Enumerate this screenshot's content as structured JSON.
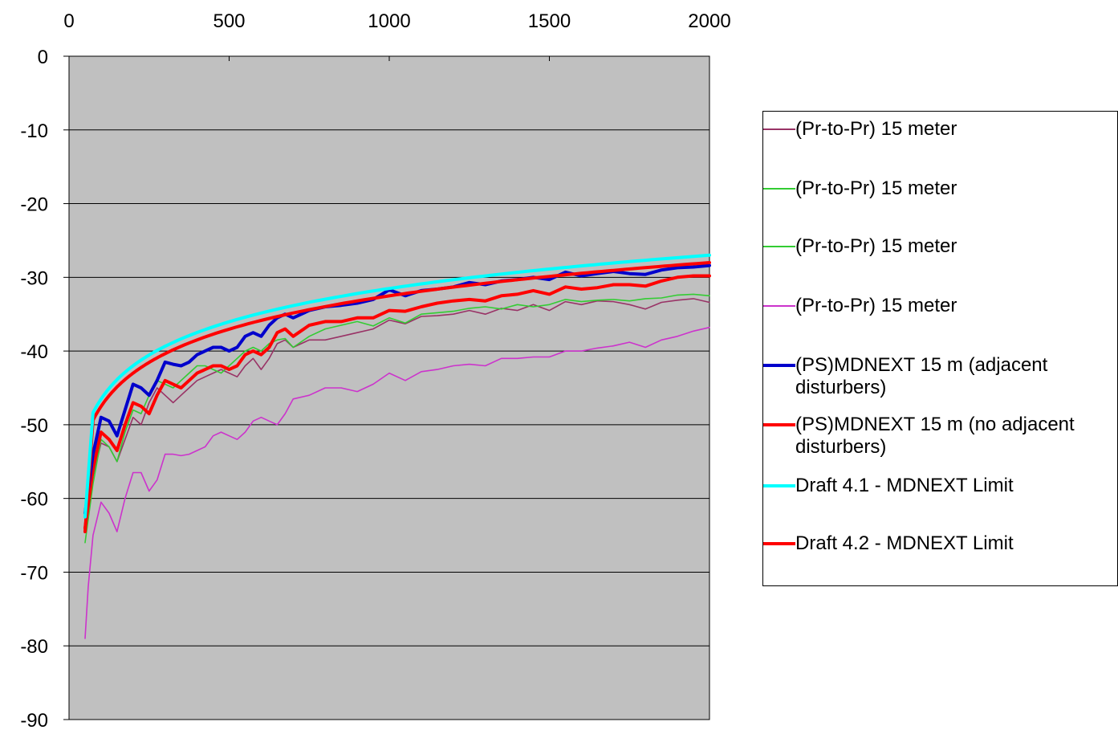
{
  "chart_data": {
    "type": "line",
    "title": "",
    "xlabel": "",
    "ylabel": "",
    "xlim": [
      0,
      2000
    ],
    "ylim": [
      -90,
      0
    ],
    "x_ticks": [
      "0",
      "500",
      "1000",
      "1500",
      "2000"
    ],
    "y_ticks": [
      "0",
      "-10",
      "-20",
      "-30",
      "-40",
      "-50",
      "-60",
      "-70",
      "-80",
      "-90"
    ],
    "x_axis_position": "top",
    "grid": "horizontal",
    "plot_background": "#c0c0c0",
    "legend_position": "right",
    "series": [
      {
        "name": "(Pr-to-Pr) 15 meter",
        "color": "#993366",
        "weight": "thin",
        "points": [
          [
            50,
            -64
          ],
          [
            75,
            -57
          ],
          [
            100,
            -52.5
          ],
          [
            125,
            -53
          ],
          [
            150,
            -55
          ],
          [
            175,
            -52
          ],
          [
            200,
            -49
          ],
          [
            225,
            -50
          ],
          [
            250,
            -47
          ],
          [
            275,
            -45
          ],
          [
            300,
            -46
          ],
          [
            325,
            -47
          ],
          [
            350,
            -46
          ],
          [
            375,
            -45
          ],
          [
            400,
            -44
          ],
          [
            425,
            -43.5
          ],
          [
            450,
            -43
          ],
          [
            475,
            -42.5
          ],
          [
            500,
            -43
          ],
          [
            525,
            -43.5
          ],
          [
            550,
            -42
          ],
          [
            575,
            -41
          ],
          [
            600,
            -42.5
          ],
          [
            625,
            -41
          ],
          [
            650,
            -39
          ],
          [
            675,
            -38.5
          ],
          [
            700,
            -39.5
          ],
          [
            750,
            -38.5
          ],
          [
            800,
            -38.5
          ],
          [
            850,
            -38
          ],
          [
            900,
            -37.5
          ],
          [
            950,
            -37
          ],
          [
            1000,
            -35.8
          ],
          [
            1050,
            -36.3
          ],
          [
            1100,
            -35.3
          ],
          [
            1150,
            -35.2
          ],
          [
            1200,
            -35
          ],
          [
            1250,
            -34.5
          ],
          [
            1300,
            -35
          ],
          [
            1350,
            -34.2
          ],
          [
            1400,
            -34.5
          ],
          [
            1450,
            -33.7
          ],
          [
            1500,
            -34.5
          ],
          [
            1550,
            -33.3
          ],
          [
            1600,
            -33.7
          ],
          [
            1650,
            -33.2
          ],
          [
            1700,
            -33.3
          ],
          [
            1750,
            -33.7
          ],
          [
            1800,
            -34.3
          ],
          [
            1850,
            -33.4
          ],
          [
            1900,
            -33.1
          ],
          [
            1950,
            -32.9
          ],
          [
            2000,
            -33.4
          ]
        ]
      },
      {
        "name": "(Pr-to-Pr) 15 meter",
        "color": "#33cc33",
        "weight": "thin",
        "points": [
          [
            50,
            -66
          ],
          [
            75,
            -58
          ],
          [
            100,
            -52
          ],
          [
            125,
            -53
          ],
          [
            150,
            -55
          ],
          [
            175,
            -51
          ],
          [
            200,
            -48
          ],
          [
            225,
            -48.5
          ],
          [
            250,
            -46
          ],
          [
            275,
            -44
          ],
          [
            300,
            -44.5
          ],
          [
            325,
            -45
          ],
          [
            350,
            -44
          ],
          [
            375,
            -43
          ],
          [
            400,
            -42
          ],
          [
            425,
            -42
          ],
          [
            450,
            -42.5
          ],
          [
            475,
            -43
          ],
          [
            500,
            -42
          ],
          [
            525,
            -41
          ],
          [
            550,
            -40
          ],
          [
            575,
            -39.5
          ],
          [
            600,
            -40
          ],
          [
            625,
            -39
          ],
          [
            650,
            -38.5
          ],
          [
            675,
            -38.3
          ],
          [
            700,
            -39.5
          ],
          [
            750,
            -38
          ],
          [
            800,
            -37
          ],
          [
            850,
            -36.5
          ],
          [
            900,
            -36
          ],
          [
            950,
            -36.6
          ],
          [
            1000,
            -35.5
          ],
          [
            1050,
            -36.2
          ],
          [
            1100,
            -35
          ],
          [
            1150,
            -34.8
          ],
          [
            1200,
            -34.6
          ],
          [
            1250,
            -34.2
          ],
          [
            1300,
            -34
          ],
          [
            1350,
            -34.3
          ],
          [
            1400,
            -33.7
          ],
          [
            1450,
            -34
          ],
          [
            1500,
            -33.7
          ],
          [
            1550,
            -33
          ],
          [
            1600,
            -33.3
          ],
          [
            1650,
            -33.1
          ],
          [
            1700,
            -33
          ],
          [
            1750,
            -33.2
          ],
          [
            1800,
            -32.9
          ],
          [
            1850,
            -32.8
          ],
          [
            1900,
            -32.4
          ],
          [
            1950,
            -32.3
          ],
          [
            2000,
            -32.5
          ]
        ]
      },
      {
        "name": "(Pr-to-Pr) 15 meter",
        "color": "#33cc33",
        "weight": "thin",
        "points": []
      },
      {
        "name": "(Pr-to-Pr) 15 meter",
        "color": "#cc33cc",
        "weight": "thin",
        "points": [
          [
            50,
            -79
          ],
          [
            60,
            -72
          ],
          [
            75,
            -65
          ],
          [
            100,
            -60.5
          ],
          [
            125,
            -62
          ],
          [
            150,
            -64.5
          ],
          [
            175,
            -60
          ],
          [
            200,
            -56.5
          ],
          [
            225,
            -56.5
          ],
          [
            250,
            -59
          ],
          [
            275,
            -57.5
          ],
          [
            300,
            -54
          ],
          [
            325,
            -54
          ],
          [
            350,
            -54.2
          ],
          [
            375,
            -54
          ],
          [
            400,
            -53.5
          ],
          [
            425,
            -53
          ],
          [
            450,
            -51.5
          ],
          [
            475,
            -51
          ],
          [
            500,
            -51.5
          ],
          [
            525,
            -52
          ],
          [
            550,
            -51
          ],
          [
            575,
            -49.5
          ],
          [
            600,
            -49
          ],
          [
            625,
            -49.5
          ],
          [
            650,
            -50
          ],
          [
            675,
            -48.5
          ],
          [
            700,
            -46.5
          ],
          [
            750,
            -46
          ],
          [
            800,
            -45
          ],
          [
            850,
            -45
          ],
          [
            900,
            -45.5
          ],
          [
            950,
            -44.5
          ],
          [
            1000,
            -43
          ],
          [
            1050,
            -44
          ],
          [
            1100,
            -42.8
          ],
          [
            1150,
            -42.5
          ],
          [
            1200,
            -42
          ],
          [
            1250,
            -41.8
          ],
          [
            1300,
            -42
          ],
          [
            1350,
            -41
          ],
          [
            1400,
            -41
          ],
          [
            1450,
            -40.8
          ],
          [
            1500,
            -40.8
          ],
          [
            1550,
            -40
          ],
          [
            1600,
            -40
          ],
          [
            1650,
            -39.6
          ],
          [
            1700,
            -39.3
          ],
          [
            1750,
            -38.8
          ],
          [
            1800,
            -39.5
          ],
          [
            1850,
            -38.5
          ],
          [
            1900,
            -38
          ],
          [
            1950,
            -37.3
          ],
          [
            2000,
            -36.8
          ]
        ]
      },
      {
        "name": "(PS)MDNEXT 15 m (adjacent disturbers)",
        "color": "#0000cc",
        "weight": "thick",
        "points": [
          [
            50,
            -62
          ],
          [
            75,
            -54
          ],
          [
            100,
            -49
          ],
          [
            125,
            -49.5
          ],
          [
            150,
            -51.5
          ],
          [
            175,
            -48
          ],
          [
            200,
            -44.5
          ],
          [
            225,
            -45
          ],
          [
            250,
            -46
          ],
          [
            275,
            -44
          ],
          [
            300,
            -41.5
          ],
          [
            325,
            -41.8
          ],
          [
            350,
            -42
          ],
          [
            375,
            -41.5
          ],
          [
            400,
            -40.5
          ],
          [
            425,
            -40
          ],
          [
            450,
            -39.5
          ],
          [
            475,
            -39.5
          ],
          [
            500,
            -40
          ],
          [
            525,
            -39.5
          ],
          [
            550,
            -38
          ],
          [
            575,
            -37.5
          ],
          [
            600,
            -38
          ],
          [
            625,
            -36.5
          ],
          [
            650,
            -35.5
          ],
          [
            675,
            -35
          ],
          [
            700,
            -35.5
          ],
          [
            750,
            -34.5
          ],
          [
            800,
            -34
          ],
          [
            850,
            -33.8
          ],
          [
            900,
            -33.5
          ],
          [
            950,
            -33
          ],
          [
            1000,
            -31.7
          ],
          [
            1050,
            -32.5
          ],
          [
            1100,
            -31.8
          ],
          [
            1150,
            -31.6
          ],
          [
            1200,
            -31.3
          ],
          [
            1250,
            -30.7
          ],
          [
            1300,
            -31
          ],
          [
            1350,
            -30.5
          ],
          [
            1400,
            -30.3
          ],
          [
            1450,
            -30
          ],
          [
            1500,
            -30.3
          ],
          [
            1550,
            -29.3
          ],
          [
            1600,
            -29.8
          ],
          [
            1650,
            -29.5
          ],
          [
            1700,
            -29.2
          ],
          [
            1750,
            -29.5
          ],
          [
            1800,
            -29.6
          ],
          [
            1850,
            -29
          ],
          [
            1900,
            -28.7
          ],
          [
            1950,
            -28.6
          ],
          [
            2000,
            -28.4
          ]
        ]
      },
      {
        "name": "(PS)MDNEXT 15 m (no adjacent disturbers)",
        "color": "#ff0000",
        "weight": "thick",
        "points": [
          [
            50,
            -64
          ],
          [
            75,
            -56
          ],
          [
            100,
            -51
          ],
          [
            125,
            -52
          ],
          [
            150,
            -53.5
          ],
          [
            175,
            -50
          ],
          [
            200,
            -47
          ],
          [
            225,
            -47.5
          ],
          [
            250,
            -48.5
          ],
          [
            275,
            -46
          ],
          [
            300,
            -44
          ],
          [
            325,
            -44.5
          ],
          [
            350,
            -45
          ],
          [
            375,
            -44
          ],
          [
            400,
            -43
          ],
          [
            425,
            -42.5
          ],
          [
            450,
            -42
          ],
          [
            475,
            -42
          ],
          [
            500,
            -42.5
          ],
          [
            525,
            -42
          ],
          [
            550,
            -40.5
          ],
          [
            575,
            -40
          ],
          [
            600,
            -40.5
          ],
          [
            625,
            -39.5
          ],
          [
            650,
            -37.5
          ],
          [
            675,
            -37
          ],
          [
            700,
            -38
          ],
          [
            750,
            -36.5
          ],
          [
            800,
            -36
          ],
          [
            850,
            -36
          ],
          [
            900,
            -35.5
          ],
          [
            950,
            -35.5
          ],
          [
            1000,
            -34.5
          ],
          [
            1050,
            -34.6
          ],
          [
            1100,
            -34
          ],
          [
            1150,
            -33.5
          ],
          [
            1200,
            -33.2
          ],
          [
            1250,
            -33
          ],
          [
            1300,
            -33.2
          ],
          [
            1350,
            -32.5
          ],
          [
            1400,
            -32.3
          ],
          [
            1450,
            -31.8
          ],
          [
            1500,
            -32.3
          ],
          [
            1550,
            -31.3
          ],
          [
            1600,
            -31.6
          ],
          [
            1650,
            -31.4
          ],
          [
            1700,
            -31
          ],
          [
            1750,
            -31
          ],
          [
            1800,
            -31.2
          ],
          [
            1850,
            -30.5
          ],
          [
            1900,
            -30
          ],
          [
            1950,
            -29.8
          ],
          [
            2000,
            -29.8
          ]
        ]
      },
      {
        "name": "Draft 4.1 - MDNEXT Limit",
        "color": "#00ffff",
        "weight": "thick",
        "formula": "limit",
        "offset": 0.0
      },
      {
        "name": "Draft 4.2 - MDNEXT Limit",
        "color": "#ff0000",
        "weight": "thick",
        "formula": "limit",
        "offset": -1.0
      }
    ]
  }
}
